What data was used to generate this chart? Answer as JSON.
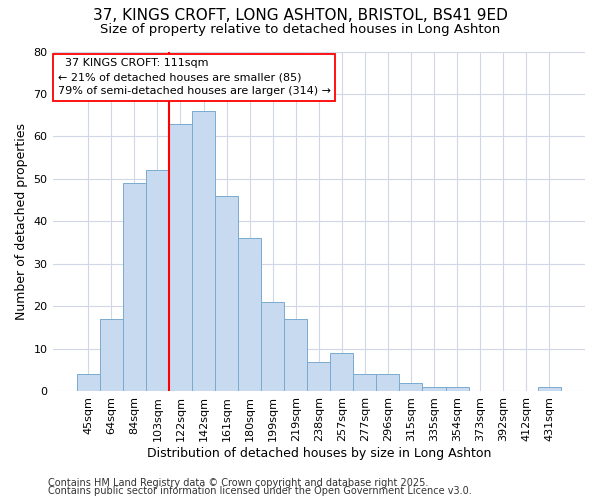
{
  "title_line1": "37, KINGS CROFT, LONG ASHTON, BRISTOL, BS41 9ED",
  "title_line2": "Size of property relative to detached houses in Long Ashton",
  "xlabel": "Distribution of detached houses by size in Long Ashton",
  "ylabel": "Number of detached properties",
  "categories": [
    "45sqm",
    "64sqm",
    "84sqm",
    "103sqm",
    "122sqm",
    "142sqm",
    "161sqm",
    "180sqm",
    "199sqm",
    "219sqm",
    "238sqm",
    "257sqm",
    "277sqm",
    "296sqm",
    "315sqm",
    "335sqm",
    "354sqm",
    "373sqm",
    "392sqm",
    "412sqm",
    "431sqm"
  ],
  "values": [
    4,
    17,
    49,
    52,
    63,
    66,
    46,
    36,
    21,
    17,
    7,
    9,
    4,
    4,
    2,
    1,
    1,
    0,
    0,
    0,
    1
  ],
  "bar_color": "#c8daf0",
  "bar_edge_color": "#7aaad0",
  "ylim": [
    0,
    80
  ],
  "yticks": [
    0,
    10,
    20,
    30,
    40,
    50,
    60,
    70,
    80
  ],
  "property_label": "37 KINGS CROFT: 111sqm",
  "pct_smaller": "21% of detached houses are smaller (85)",
  "pct_larger": "79% of semi-detached houses are larger (314)",
  "vline_x": 3.5,
  "footer_line1": "Contains HM Land Registry data © Crown copyright and database right 2025.",
  "footer_line2": "Contains public sector information licensed under the Open Government Licence v3.0.",
  "background_color": "#ffffff",
  "plot_bg_color": "#ffffff",
  "grid_color": "#d0d8e8",
  "title_fontsize": 11,
  "subtitle_fontsize": 9.5,
  "axis_label_fontsize": 9,
  "tick_fontsize": 8,
  "footer_fontsize": 7,
  "annotation_fontsize": 8
}
